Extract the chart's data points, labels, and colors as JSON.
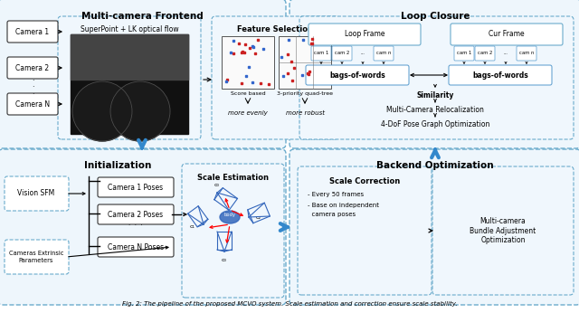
{
  "title": "Fig. 2: The pipeline of the proposed MCVO system. Scale estimation and correction ensure scale stability.",
  "bg_color": "#ffffff",
  "top_left_title": "Multi-camera Frontend",
  "top_right_title": "Loop Closure",
  "bottom_left_title": "Initialization",
  "bottom_right_title": "Backend Optimization",
  "frontend_cameras": [
    "Camera 1",
    "Camera 2",
    "Camera N"
  ],
  "frontend_superpoint": "SuperPoint + LK optical flow",
  "frontend_feature": "Feature Selection",
  "frontend_score": "Score based",
  "frontend_quadtree": "3-priority quad-tree",
  "frontend_more1": "more evenly",
  "frontend_more2": "more robust",
  "loop_frame_left": "Loop Frame",
  "loop_frame_right": "Cur Frame",
  "loop_cams_left": [
    "cam 1",
    "cam 2",
    "...",
    "cam n"
  ],
  "loop_cams_right": [
    "cam 1",
    "cam 2",
    "...",
    "cam n"
  ],
  "loop_bags1": "bags-of-words",
  "loop_bags2": "bags-of-words",
  "loop_similarity": "Similarity",
  "loop_reloc": "Multi-Camera Relocalization",
  "loop_pose": "4-DoF Pose Graph Optimization",
  "init_vsfm": "Vision SFM",
  "init_cameras": [
    "Camera 1 Poses",
    "Camera 2 Poses",
    "Camera N Poses"
  ],
  "init_extrinsic": "Cameras Extrinsic\nParameters",
  "init_scale": "Scale Estimation",
  "backend_scale_title": "Scale Correction",
  "backend_scale1": "- Every 50 frames",
  "backend_scale2": "- Base on independent",
  "backend_scale3": "  camera poses",
  "backend_opt_title": "Multi-camera\nBundle Adjustment\nOptimization"
}
